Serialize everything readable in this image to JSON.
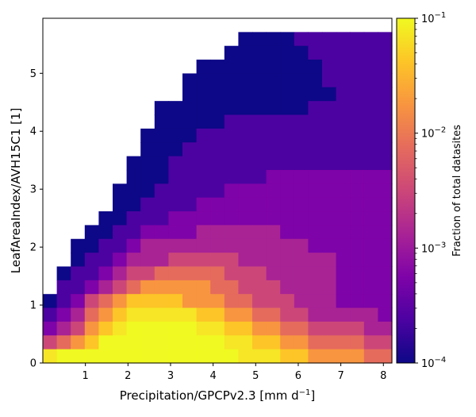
{
  "chart_data": {
    "type": "heatmap",
    "xlabel": "Precipitation/GPCPv2.3 [mm d",
    "xlabel_sup": "−1",
    "xlabel_tail": "]",
    "ylabel": "LeafAreaIndex/AVH15C1 [1]",
    "xlim": [
      0,
      8.2
    ],
    "ylim": [
      0,
      5.95
    ],
    "x_ticks": [
      "1",
      "2",
      "3",
      "4",
      "5",
      "6",
      "7",
      "8"
    ],
    "y_ticks": [
      "0",
      "1",
      "2",
      "3",
      "4",
      "5"
    ],
    "x_tick_values": [
      1,
      2,
      3,
      4,
      5,
      6,
      7,
      8
    ],
    "y_tick_values": [
      0,
      1,
      2,
      3,
      4,
      5
    ],
    "bins": {
      "x_count": 25,
      "y_count": 25
    },
    "colorscale": "plasma",
    "colorbar": {
      "label": "Fraction of total datasites",
      "scale": "log",
      "range": [
        0.0001,
        0.1
      ],
      "ticks": [
        {
          "base": "10",
          "exp": "−1",
          "value": 0.1
        },
        {
          "base": "10",
          "exp": "−2",
          "value": 0.01
        },
        {
          "base": "10",
          "exp": "−3",
          "value": 0.001
        },
        {
          "base": "10",
          "exp": "−4",
          "value": 0.0001
        }
      ]
    },
    "grid": false,
    "grid_rows_top_to_bottom": [
      ".................................................",
      "..............0000111111112222222221221110000....",
      ".............00000011111122222222222222211110....",
      "...........00000000011111111111112222222110000...",
      "..........000000000011111111111112222222211000...",
      "..........00000000000111111111112222222221100....",
      "........000000000001111111111111222222222110000..",
      "........000001111111111111111111222222222222100..",
      ".......00001111111111111111111111222222221222210.",
      ".......00011111111111111111111111122222222222221.",
      "......00011111111111111111111111112222222222221.0",
      "......0001111111222222222222111111222222222222110",
      ".....000111112222222222222222211112222222221211.0",
      ".....001111222222222222222222221111222222222211.0",
      "....0011122222222222222222222221111222222222211..",
      "...00112222333333222222222222211111222222222111.",
      "..0011233333333333322222222222211111222222222111",
      "..0112333444443333333222222222221111122222221111",
      ".0112344555554443333322222222222111111122211111",
      ".1123456666655444333322222222222211111111111111",
      "0124567777666554443332222222222222211111111.0..",
      "1235678888877665544333332222222222222111111....",
      "23467899999887766554444333333333222222111......",
      "45679999999998877665555444433333322222.........",
      "89999999999999888776666555544443333322........."
    ]
  }
}
